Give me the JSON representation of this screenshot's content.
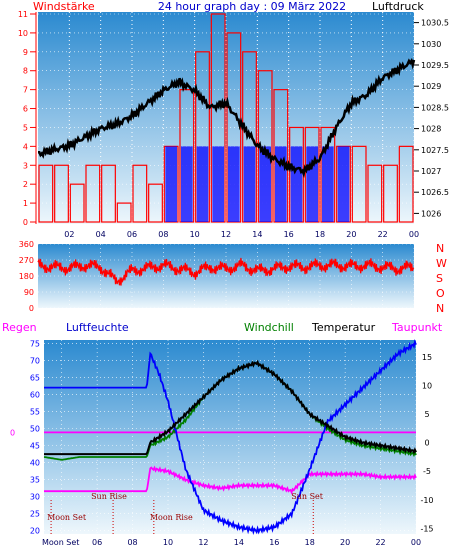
{
  "header": {
    "left_title": "Windstärke",
    "center_title": "24 hour graph day : 09 März 2022",
    "right_title": "Luftdruck"
  },
  "lower_header": {
    "regen": "Regen",
    "luftfeuchte": "Luftfeuchte",
    "windchill": "Windchill",
    "temperatur": "Temperatur",
    "taupunkt": "Taupunkt"
  },
  "colors": {
    "wind_speed": "#ff0000",
    "wind_gust_blue": "#0000ff",
    "pressure": "#000000",
    "direction": "#ff0000",
    "humidity": "#0000ff",
    "temperature": "#000000",
    "windchill": "#008000",
    "dewpoint": "#ff00ff",
    "sky_top": "#1a80c8",
    "sky_bottom": "#e8f4fb"
  },
  "chart_data": [
    {
      "id": "wind_pressure",
      "type": "bar",
      "x_ticks": [
        "02",
        "04",
        "06",
        "08",
        "10",
        "12",
        "14",
        "16",
        "18",
        "20",
        "22",
        "00"
      ],
      "x_range": [
        0,
        24
      ],
      "left_axis": {
        "label": "Windstärke",
        "ticks": [
          "0",
          "1",
          "2",
          "3",
          "4",
          "5",
          "6",
          "7",
          "8",
          "9",
          "10",
          "11"
        ],
        "range": [
          0,
          11
        ]
      },
      "right_axis": {
        "label": "Luftdruck",
        "ticks": [
          "1026",
          "1026.5",
          "1027",
          "1027.5",
          "1028",
          "1028.5",
          "1029",
          "1029.5",
          "1030",
          "1030.5"
        ],
        "range": [
          1025.75,
          1030.75
        ]
      },
      "series": [
        {
          "name": "Windstärke",
          "type": "bar",
          "x_hours": [
            0.5,
            1.5,
            2.5,
            3.5,
            4.5,
            5.5,
            6.5,
            7.5,
            8.5,
            9.5,
            10.5,
            11.5,
            12.5,
            13.5,
            14.5,
            15.5,
            16.5,
            17.5,
            18.5,
            19.5,
            20.5,
            21.5,
            22.5,
            23.5
          ],
          "values": [
            3,
            3,
            2,
            3,
            3,
            1,
            3,
            2,
            4,
            7,
            9,
            11,
            10,
            9,
            8,
            7,
            5,
            5,
            5,
            4,
            4,
            3,
            3,
            4
          ]
        },
        {
          "name": "Luftdruck",
          "type": "line",
          "x_hours": [
            0,
            1,
            2,
            3,
            4,
            5,
            6,
            7,
            8,
            9,
            10,
            11,
            12,
            13,
            14,
            15,
            16,
            17,
            18,
            19,
            20,
            21,
            22,
            23,
            24
          ],
          "values": [
            1027.4,
            1027.5,
            1027.6,
            1027.8,
            1028.0,
            1028.1,
            1028.3,
            1028.6,
            1028.9,
            1029.1,
            1028.9,
            1028.5,
            1028.6,
            1028.1,
            1027.6,
            1027.3,
            1027.1,
            1027.0,
            1027.3,
            1028.0,
            1028.6,
            1028.8,
            1029.2,
            1029.4,
            1029.6
          ]
        }
      ]
    },
    {
      "id": "wind_direction",
      "type": "line",
      "x_range": [
        0,
        24
      ],
      "left_axis": {
        "ticks": [
          "0",
          "90",
          "180",
          "270",
          "360"
        ],
        "range": [
          0,
          360
        ]
      },
      "right_axis": {
        "labels": [
          "N",
          "W",
          "S",
          "O",
          "N"
        ]
      },
      "series": [
        {
          "name": "direction",
          "x_hours": [
            0,
            1,
            2,
            3,
            4,
            5,
            6,
            7,
            8,
            9,
            10,
            11,
            12,
            13,
            14,
            15,
            16,
            17,
            18,
            19,
            20,
            21,
            22,
            23,
            24
          ],
          "values": [
            240,
            230,
            225,
            240,
            230,
            150,
            210,
            225,
            240,
            220,
            200,
            230,
            220,
            240,
            210,
            220,
            235,
            230,
            240,
            240,
            235,
            240,
            230,
            220,
            230
          ]
        }
      ]
    },
    {
      "id": "humidity_temperature",
      "type": "line",
      "x_ticks": [
        "Moon Set",
        "06",
        "08",
        "10",
        "12",
        "14",
        "16",
        "18",
        "20",
        "22",
        "00"
      ],
      "x_range": [
        3,
        24
      ],
      "left_axis": {
        "label": "Luftfeuchte",
        "ticks": [
          "20",
          "25",
          "30",
          "35",
          "40",
          "45",
          "50",
          "55",
          "60",
          "65",
          "70",
          "75"
        ],
        "range": [
          19,
          76
        ]
      },
      "right_axis": {
        "label": "Temperatur",
        "ticks": [
          "-15",
          "-10",
          "-5",
          "0",
          "5",
          "10",
          "15"
        ],
        "range": [
          -16,
          18
        ]
      },
      "regen_axis": {
        "label": "Regen",
        "ticks": [
          "0"
        ]
      },
      "annotations": [
        {
          "text": "Moon Set",
          "hour": 3.4
        },
        {
          "text": "Sun Rise",
          "hour": 6.9
        },
        {
          "text": "Moon Rise",
          "hour": 9.2
        },
        {
          "text": "Sun Set",
          "hour": 18.2
        }
      ],
      "series": [
        {
          "name": "Luftfeuchte",
          "x_hours": [
            3,
            4,
            5,
            6,
            7,
            8,
            8.8,
            9,
            9.5,
            10,
            11,
            12,
            13,
            14,
            15,
            16,
            17,
            18,
            19,
            20,
            21,
            22,
            23,
            24
          ],
          "values": [
            62,
            62,
            62,
            62,
            62,
            62,
            62,
            72,
            66,
            58,
            38,
            26,
            23,
            21,
            20,
            21,
            25,
            38,
            52,
            57,
            62,
            67,
            72,
            75
          ]
        },
        {
          "name": "Temperatur",
          "x_hours": [
            3,
            4,
            5,
            6,
            7,
            8,
            8.8,
            9,
            10,
            11,
            12,
            13,
            14,
            15,
            16,
            17,
            18,
            19,
            20,
            21,
            22,
            23,
            24
          ],
          "values": [
            -2,
            -2,
            -2,
            -2,
            -2,
            -2,
            -2,
            0,
            2,
            5,
            8,
            11,
            13,
            14,
            12,
            9,
            5,
            3,
            1,
            0,
            -0.5,
            -1,
            -1.5
          ]
        },
        {
          "name": "Windchill",
          "x_hours": [
            3,
            4,
            5,
            6,
            7,
            8,
            8.8,
            9,
            10,
            11,
            12,
            13,
            14,
            15,
            16,
            17,
            18,
            19,
            20,
            21,
            22,
            23,
            24
          ],
          "values": [
            -2.5,
            -3,
            -2.5,
            -2.5,
            -2.5,
            -2.5,
            -2.5,
            -0.5,
            1,
            4,
            8,
            11,
            13,
            14,
            12,
            9,
            5,
            2.5,
            0.5,
            -0.5,
            -1,
            -1.5,
            -2
          ]
        },
        {
          "name": "Taupunkt",
          "x_hours": [
            3,
            4,
            5,
            6,
            7,
            8,
            8.8,
            9,
            10,
            11,
            12,
            13,
            14,
            15,
            16,
            17,
            18,
            19,
            20,
            21,
            22,
            23,
            24
          ],
          "values": [
            -8.5,
            -8.5,
            -8.5,
            -8.5,
            -8.5,
            -8.5,
            -8.5,
            -4.5,
            -5,
            -6.5,
            -7.5,
            -8,
            -7.5,
            -7.5,
            -7.5,
            -8.5,
            -5.5,
            -5.5,
            -5.5,
            -5.5,
            -6,
            -6,
            -6
          ]
        },
        {
          "name": "Regen",
          "x_hours": [
            3,
            24
          ],
          "values": [
            0,
            0
          ]
        }
      ]
    }
  ]
}
